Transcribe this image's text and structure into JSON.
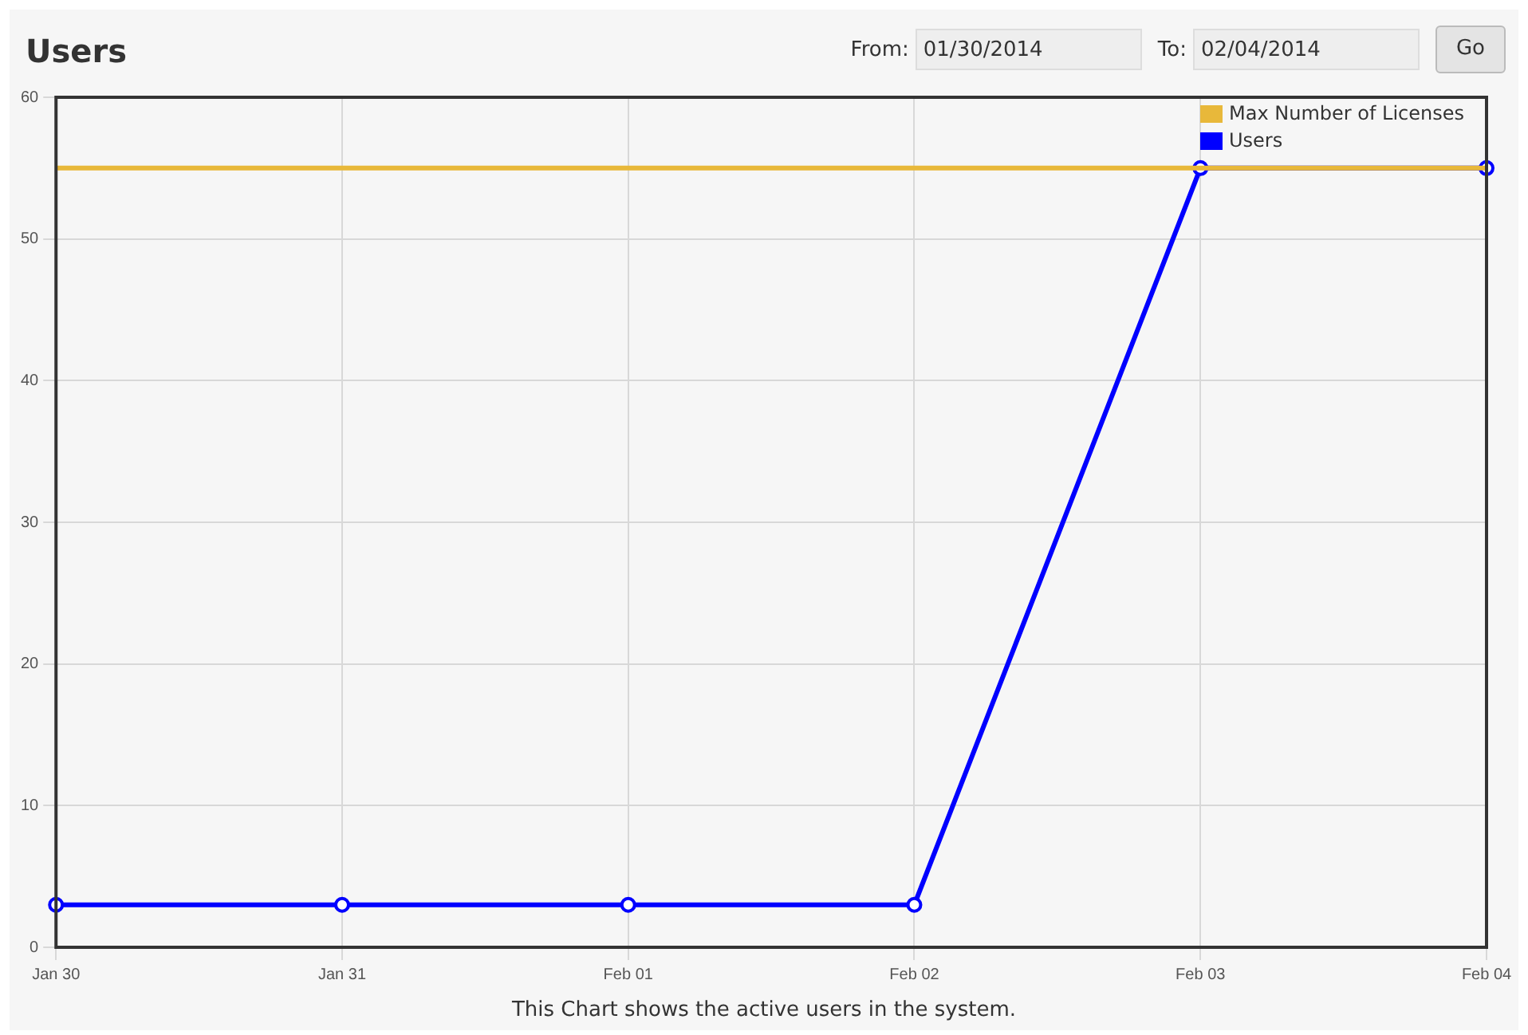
{
  "chart_data": {
    "type": "line",
    "title": "Users",
    "categories": [
      "Jan 30",
      "Jan 31",
      "Feb 01",
      "Feb 02",
      "Feb 03",
      "Feb 04"
    ],
    "series": [
      {
        "name": "Max Number of Licenses",
        "color": "#e8b83a",
        "values": [
          55,
          55,
          55,
          55,
          55,
          55
        ],
        "marker": "none"
      },
      {
        "name": "Users",
        "color": "#0000ff",
        "values": [
          3,
          3,
          3,
          3,
          55,
          55
        ]
      }
    ],
    "ylim": [
      0,
      60
    ],
    "yticks": [
      0,
      10,
      20,
      30,
      40,
      50,
      60
    ],
    "grid": true,
    "legend": "top right",
    "marker": "circle",
    "annotations": [
      "This Chart shows the active users in the system.",
      "From:",
      "01/30/2014",
      "To:",
      "02/04/2014",
      "Go"
    ]
  }
}
